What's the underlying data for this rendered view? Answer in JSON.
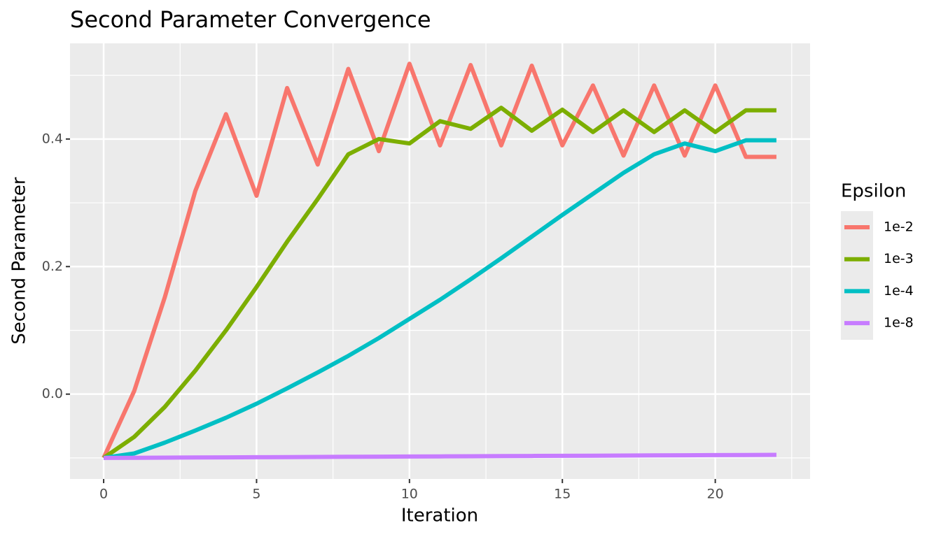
{
  "chart_data": {
    "type": "line",
    "title": "Second Parameter Convergence",
    "x_label": "Iteration",
    "y_label": "Second Parameter",
    "legend_title": "Epsilon",
    "legend_position": "right",
    "grid": true,
    "x": [
      0,
      1,
      2,
      3,
      4,
      5,
      6,
      7,
      8,
      9,
      10,
      11,
      12,
      13,
      14,
      15,
      16,
      17,
      18,
      19,
      20,
      21,
      22
    ],
    "series": [
      {
        "name": "1e-2",
        "color": "#F8766D",
        "values": [
          -0.1,
          0.005,
          0.152,
          0.319,
          0.439,
          0.311,
          0.48,
          0.36,
          0.51,
          0.381,
          0.518,
          0.39,
          0.516,
          0.39,
          0.515,
          0.39,
          0.484,
          0.374,
          0.484,
          0.374,
          0.484,
          0.372,
          0.372
        ]
      },
      {
        "name": "1e-3",
        "color": "#7CAE00",
        "values": [
          -0.1,
          -0.067,
          -0.02,
          0.037,
          0.1,
          0.168,
          0.239,
          0.306,
          0.376,
          0.4,
          0.393,
          0.428,
          0.416,
          0.449,
          0.413,
          0.446,
          0.411,
          0.445,
          0.411,
          0.445,
          0.411,
          0.445,
          0.445
        ]
      },
      {
        "name": "1e-4",
        "color": "#00BFC4",
        "values": [
          -0.1,
          -0.093,
          -0.076,
          -0.057,
          -0.037,
          -0.015,
          0.009,
          0.034,
          0.06,
          0.088,
          0.118,
          0.148,
          0.18,
          0.213,
          0.247,
          0.281,
          0.314,
          0.347,
          0.376,
          0.393,
          0.381,
          0.398,
          0.398
        ]
      },
      {
        "name": "1e-8",
        "color": "#C77CFF",
        "values": [
          -0.1,
          -0.0998,
          -0.0996,
          -0.0993,
          -0.0991,
          -0.0989,
          -0.0987,
          -0.0985,
          -0.0982,
          -0.098,
          -0.0978,
          -0.0976,
          -0.0974,
          -0.0971,
          -0.0969,
          -0.0967,
          -0.0965,
          -0.0963,
          -0.096,
          -0.0958,
          -0.0956,
          -0.0954,
          -0.0952
        ]
      }
    ],
    "xlim": [
      -1.1,
      23.1
    ],
    "ylim": [
      -0.133,
      0.55
    ],
    "xticks": [
      0,
      5,
      10,
      15,
      20
    ],
    "yticks": [
      {
        "value": 0,
        "label": "0.0"
      },
      0.2,
      0.4
    ]
  }
}
